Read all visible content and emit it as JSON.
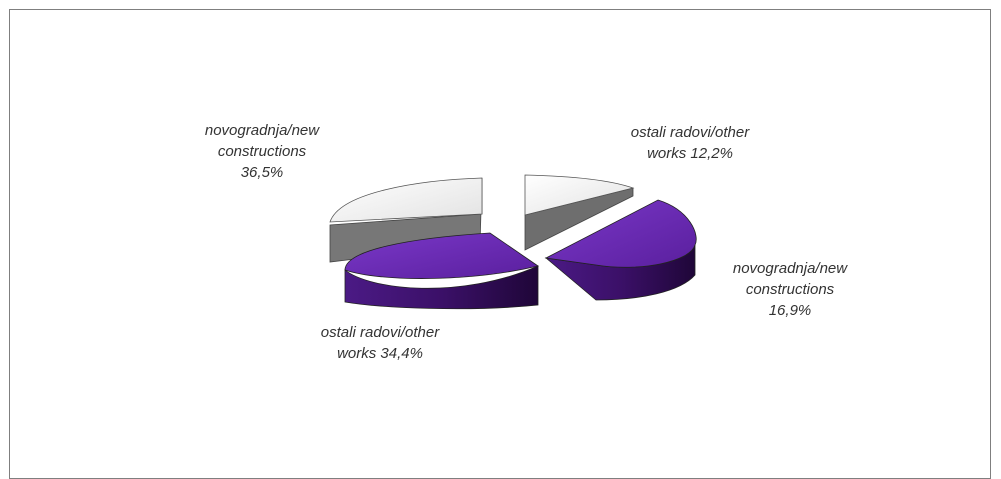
{
  "chart_data": {
    "type": "pie",
    "style": "3d-exploded",
    "pies": [
      {
        "slices": [
          {
            "label_lines": [
              "novogradnja/new",
              "constructions",
              "36,5%"
            ],
            "value": 36.5,
            "color": "#e9e9e9"
          },
          {
            "label_lines": [
              "ostali radovi/other",
              "works 34,4%"
            ],
            "value": 34.4,
            "color": "#6a2bb6"
          }
        ]
      },
      {
        "slices": [
          {
            "label_lines": [
              "ostali radovi/other",
              "works 12,2%"
            ],
            "value": 12.2,
            "color": "#e9e9e9"
          },
          {
            "label_lines": [
              "novogradnja/new",
              "constructions",
              "16,9%"
            ],
            "value": 16.9,
            "color": "#6a2bb6"
          }
        ]
      }
    ],
    "title": "",
    "legend": "none"
  }
}
